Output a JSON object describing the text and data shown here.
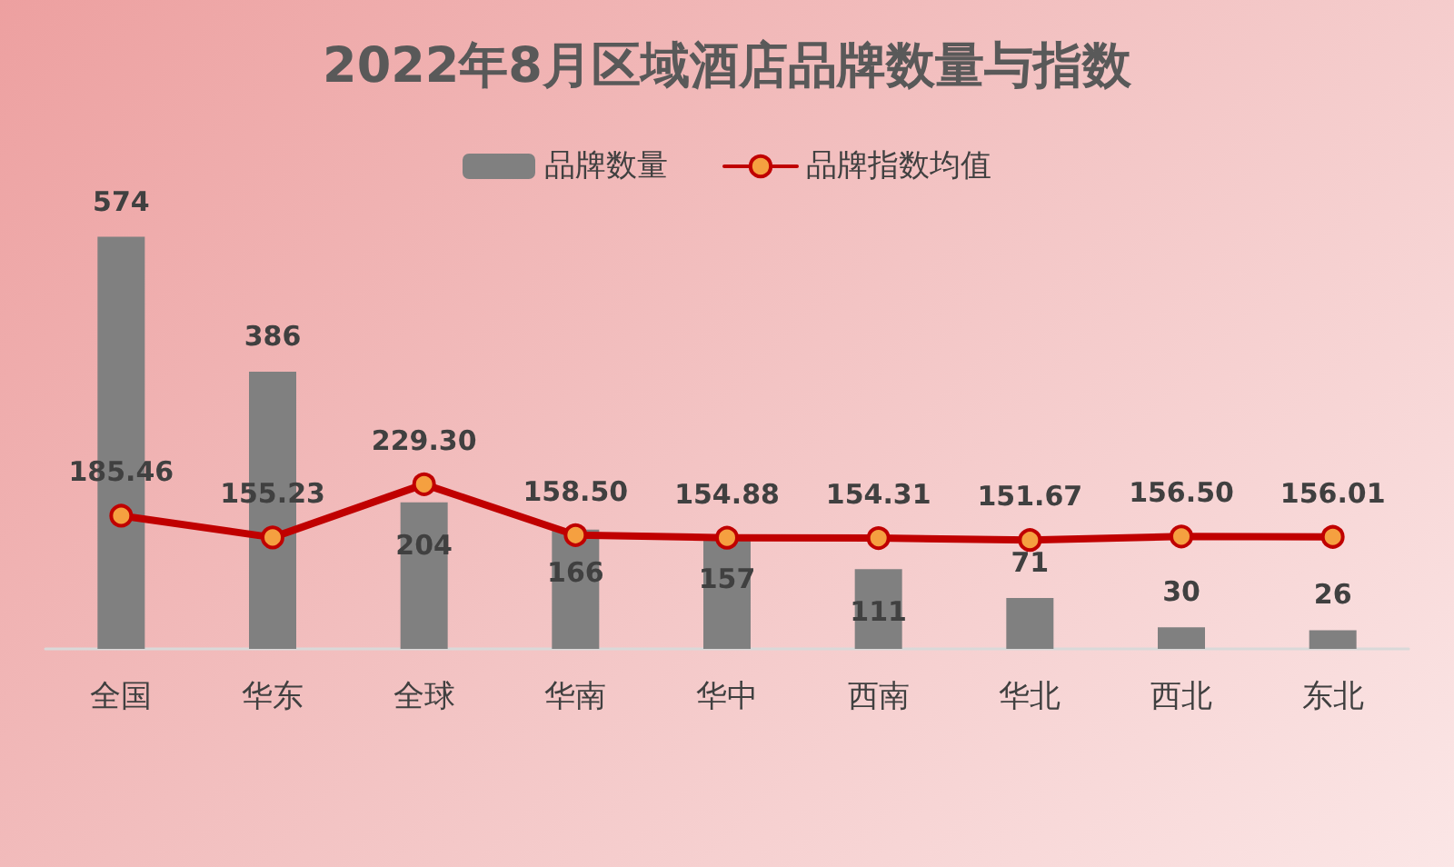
{
  "chart_data": {
    "type": "bar",
    "title": "2022年8月区域酒店品牌数量与指数",
    "categories": [
      "全国",
      "华东",
      "全球",
      "华南",
      "华中",
      "西南",
      "华北",
      "西北",
      "东北"
    ],
    "series": [
      {
        "name": "品牌数量",
        "color": "#808080",
        "values": [
          574,
          386,
          204,
          166,
          157,
          111,
          71,
          30,
          26
        ]
      },
      {
        "name": "品牌指数均值",
        "type": "line",
        "color": "#c00000",
        "values": [
          185.46,
          155.23,
          229.3,
          158.5,
          154.88,
          154.31,
          151.67,
          156.5,
          156.01
        ],
        "value_labels": [
          "185.46",
          "155.23",
          "229.30",
          "158.50",
          "154.88",
          "154.31",
          "151.67",
          "156.50",
          "156.01"
        ]
      }
    ],
    "data_labels": true,
    "legend": "top",
    "grid": false,
    "marker": "circle",
    "line_style": "solid"
  }
}
